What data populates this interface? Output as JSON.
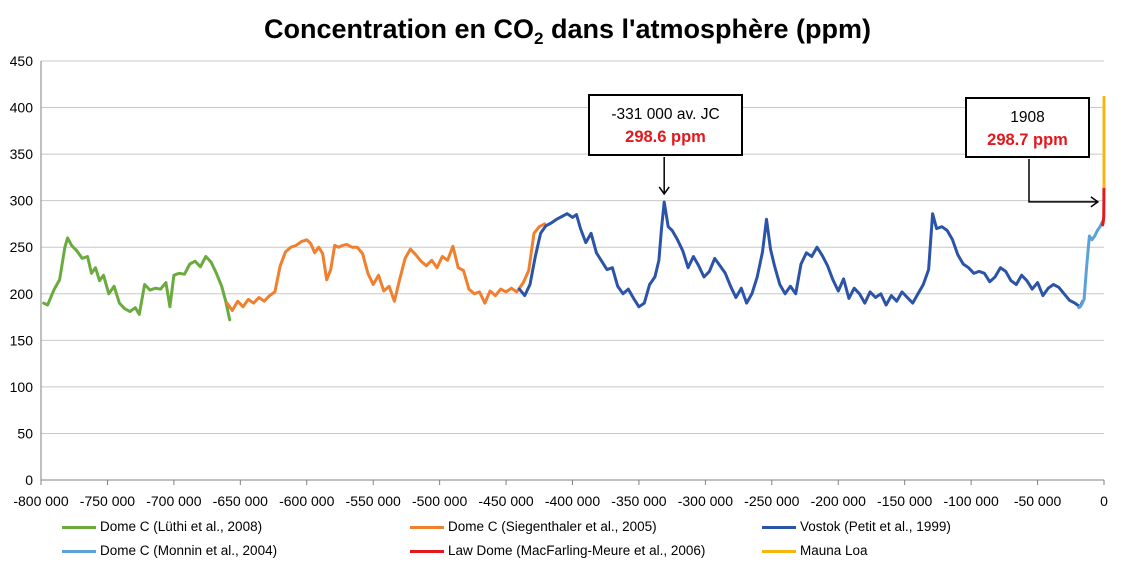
{
  "title": {
    "main": "Concentration en CO",
    "sub": "2",
    "rest": " dans l'atmosphère (ppm)"
  },
  "chart_data": {
    "type": "line",
    "title": "Concentration en CO2 dans l'atmosphère (ppm)",
    "xlim": [
      -800000,
      0
    ],
    "ylim": [
      0,
      450
    ],
    "x_ticks": [
      -800000,
      -750000,
      -700000,
      -650000,
      -600000,
      -550000,
      -500000,
      -450000,
      -400000,
      -350000,
      -300000,
      -250000,
      -200000,
      -150000,
      -100000,
      -50000,
      0
    ],
    "x_tick_labels": [
      "-800 000",
      "-750 000",
      "-700 000",
      "-650 000",
      "-600 000",
      "-550 000",
      "-500 000",
      "-450 000",
      "-400 000",
      "-350 000",
      "-300 000",
      "-250 000",
      "-200 000",
      "-150 000",
      "-100 000",
      "-50 000",
      "0"
    ],
    "y_ticks": [
      0,
      50,
      100,
      150,
      200,
      250,
      300,
      350,
      400,
      450
    ],
    "grid": "horizontal",
    "legend_position": "bottom",
    "series": [
      {
        "name": "Dome C (Lüthi et al., 2008)",
        "color": "#6aab3f",
        "points": [
          [
            -798000,
            190
          ],
          [
            -795000,
            188
          ],
          [
            -790000,
            205
          ],
          [
            -786000,
            215
          ],
          [
            -782000,
            250
          ],
          [
            -780000,
            260
          ],
          [
            -777000,
            252
          ],
          [
            -773000,
            246
          ],
          [
            -769000,
            238
          ],
          [
            -765000,
            240
          ],
          [
            -762000,
            222
          ],
          [
            -759000,
            228
          ],
          [
            -756000,
            214
          ],
          [
            -753000,
            220
          ],
          [
            -749000,
            200
          ],
          [
            -745000,
            208
          ],
          [
            -741000,
            190
          ],
          [
            -737000,
            184
          ],
          [
            -733000,
            181
          ],
          [
            -729000,
            185
          ],
          [
            -726000,
            178
          ],
          [
            -722000,
            210
          ],
          [
            -718000,
            204
          ],
          [
            -714000,
            206
          ],
          [
            -710000,
            205
          ],
          [
            -706000,
            212
          ],
          [
            -703000,
            186
          ],
          [
            -700000,
            220
          ],
          [
            -696000,
            222
          ],
          [
            -692000,
            221
          ],
          [
            -688000,
            232
          ],
          [
            -684000,
            235
          ],
          [
            -680000,
            229
          ],
          [
            -676000,
            240
          ],
          [
            -672000,
            234
          ],
          [
            -668000,
            222
          ],
          [
            -664000,
            208
          ],
          [
            -661000,
            192
          ],
          [
            -658000,
            172
          ]
        ]
      },
      {
        "name": "Dome C (Siegenthaler et al., 2005)",
        "color": "#f07f2e",
        "points": [
          [
            -660000,
            190
          ],
          [
            -656000,
            182
          ],
          [
            -652000,
            192
          ],
          [
            -648000,
            186
          ],
          [
            -644000,
            194
          ],
          [
            -640000,
            190
          ],
          [
            -636000,
            196
          ],
          [
            -632000,
            192
          ],
          [
            -628000,
            198
          ],
          [
            -624000,
            202
          ],
          [
            -620000,
            230
          ],
          [
            -616000,
            245
          ],
          [
            -612000,
            250
          ],
          [
            -608000,
            252
          ],
          [
            -604000,
            256
          ],
          [
            -600000,
            258
          ],
          [
            -597000,
            254
          ],
          [
            -594000,
            244
          ],
          [
            -591000,
            250
          ],
          [
            -588000,
            243
          ],
          [
            -585000,
            215
          ],
          [
            -582000,
            226
          ],
          [
            -579000,
            252
          ],
          [
            -576000,
            250
          ],
          [
            -573000,
            252
          ],
          [
            -570000,
            253
          ],
          [
            -566000,
            250
          ],
          [
            -562000,
            250
          ],
          [
            -558000,
            243
          ],
          [
            -554000,
            222
          ],
          [
            -550000,
            210
          ],
          [
            -546000,
            220
          ],
          [
            -542000,
            203
          ],
          [
            -538000,
            208
          ],
          [
            -534000,
            192
          ],
          [
            -530000,
            216
          ],
          [
            -526000,
            238
          ],
          [
            -522000,
            248
          ],
          [
            -518000,
            242
          ],
          [
            -514000,
            235
          ],
          [
            -510000,
            230
          ],
          [
            -506000,
            236
          ],
          [
            -502000,
            228
          ],
          [
            -498000,
            240
          ],
          [
            -494000,
            236
          ],
          [
            -490000,
            251
          ],
          [
            -486000,
            228
          ],
          [
            -482000,
            225
          ],
          [
            -478000,
            205
          ],
          [
            -474000,
            200
          ],
          [
            -470000,
            202
          ],
          [
            -466000,
            190
          ],
          [
            -462000,
            203
          ],
          [
            -458000,
            198
          ],
          [
            -454000,
            205
          ],
          [
            -450000,
            202
          ],
          [
            -446000,
            206
          ],
          [
            -442000,
            202
          ],
          [
            -437000,
            212
          ],
          [
            -433000,
            225
          ],
          [
            -429000,
            265
          ],
          [
            -425000,
            272
          ],
          [
            -421000,
            275
          ]
        ]
      },
      {
        "name": "Vostok (Petit et al., 1999)",
        "color": "#2b54a8",
        "points": [
          [
            -440000,
            205
          ],
          [
            -436000,
            198
          ],
          [
            -432000,
            210
          ],
          [
            -428000,
            240
          ],
          [
            -424000,
            265
          ],
          [
            -420000,
            273
          ],
          [
            -416000,
            276
          ],
          [
            -412000,
            280
          ],
          [
            -408000,
            283
          ],
          [
            -404000,
            286
          ],
          [
            -400000,
            282
          ],
          [
            -397000,
            285
          ],
          [
            -394000,
            270
          ],
          [
            -390000,
            255
          ],
          [
            -386000,
            265
          ],
          [
            -382000,
            244
          ],
          [
            -378000,
            235
          ],
          [
            -374000,
            226
          ],
          [
            -370000,
            228
          ],
          [
            -366000,
            208
          ],
          [
            -362000,
            200
          ],
          [
            -358000,
            205
          ],
          [
            -354000,
            195
          ],
          [
            -350000,
            186
          ],
          [
            -346000,
            190
          ],
          [
            -342000,
            210
          ],
          [
            -338000,
            218
          ],
          [
            -335000,
            236
          ],
          [
            -333000,
            270
          ],
          [
            -331000,
            298.6
          ],
          [
            -328000,
            272
          ],
          [
            -325000,
            268
          ],
          [
            -321000,
            258
          ],
          [
            -317000,
            246
          ],
          [
            -313000,
            228
          ],
          [
            -309000,
            240
          ],
          [
            -305000,
            230
          ],
          [
            -301000,
            218
          ],
          [
            -297000,
            224
          ],
          [
            -293000,
            238
          ],
          [
            -289000,
            230
          ],
          [
            -285000,
            222
          ],
          [
            -281000,
            208
          ],
          [
            -277000,
            196
          ],
          [
            -273000,
            206
          ],
          [
            -269000,
            190
          ],
          [
            -265000,
            200
          ],
          [
            -261000,
            218
          ],
          [
            -257000,
            245
          ],
          [
            -254000,
            280
          ],
          [
            -251000,
            248
          ],
          [
            -248000,
            230
          ],
          [
            -244000,
            210
          ],
          [
            -240000,
            200
          ],
          [
            -236000,
            208
          ],
          [
            -232000,
            200
          ],
          [
            -228000,
            232
          ],
          [
            -224000,
            244
          ],
          [
            -220000,
            240
          ],
          [
            -216000,
            250
          ],
          [
            -212000,
            241
          ],
          [
            -208000,
            230
          ],
          [
            -204000,
            215
          ],
          [
            -200000,
            203
          ],
          [
            -196000,
            216
          ],
          [
            -192000,
            195
          ],
          [
            -188000,
            206
          ],
          [
            -184000,
            200
          ],
          [
            -180000,
            190
          ],
          [
            -176000,
            202
          ],
          [
            -172000,
            196
          ],
          [
            -168000,
            200
          ],
          [
            -164000,
            188
          ],
          [
            -160000,
            198
          ],
          [
            -156000,
            192
          ],
          [
            -152000,
            202
          ],
          [
            -148000,
            196
          ],
          [
            -144000,
            190
          ],
          [
            -140000,
            200
          ],
          [
            -136000,
            210
          ],
          [
            -132000,
            226
          ],
          [
            -129000,
            286
          ],
          [
            -126000,
            270
          ],
          [
            -122000,
            272
          ],
          [
            -118000,
            268
          ],
          [
            -114000,
            258
          ],
          [
            -110000,
            242
          ],
          [
            -106000,
            232
          ],
          [
            -102000,
            228
          ],
          [
            -98000,
            222
          ],
          [
            -94000,
            224
          ],
          [
            -90000,
            222
          ],
          [
            -86000,
            213
          ],
          [
            -82000,
            218
          ],
          [
            -78000,
            228
          ],
          [
            -74000,
            224
          ],
          [
            -70000,
            214
          ],
          [
            -66000,
            210
          ],
          [
            -62000,
            220
          ],
          [
            -58000,
            214
          ],
          [
            -54000,
            205
          ],
          [
            -50000,
            212
          ],
          [
            -46000,
            198
          ],
          [
            -42000,
            206
          ],
          [
            -38000,
            210
          ],
          [
            -34000,
            207
          ],
          [
            -30000,
            200
          ],
          [
            -26000,
            193
          ],
          [
            -22000,
            190
          ],
          [
            -18000,
            186
          ],
          [
            -16000,
            192
          ]
        ]
      },
      {
        "name": "Dome C (Monnin et al., 2004)",
        "color": "#5aa2d8",
        "points": [
          [
            -19000,
            185
          ],
          [
            -17000,
            188
          ],
          [
            -15000,
            194
          ],
          [
            -13000,
            230
          ],
          [
            -11000,
            262
          ],
          [
            -9000,
            258
          ],
          [
            -7000,
            262
          ],
          [
            -5000,
            268
          ],
          [
            -3000,
            272
          ],
          [
            -1000,
            278
          ]
        ]
      },
      {
        "name": "Law Dome (MacFarling-Meure et al., 2006)",
        "color": "#e3181d",
        "points": [
          [
            -1000,
            274
          ],
          [
            -500,
            278
          ],
          [
            -200,
            282
          ],
          [
            -92,
            298.7
          ],
          [
            -40,
            310
          ],
          [
            -5,
            315
          ]
        ]
      },
      {
        "name": "Mauna Loa",
        "color": "#f5b70f",
        "points": [
          [
            0,
            315
          ],
          [
            0,
            340
          ],
          [
            0,
            370
          ],
          [
            0,
            390
          ],
          [
            0,
            411
          ]
        ]
      }
    ]
  },
  "callouts": [
    {
      "label": "-331 000 av. JC",
      "value": "298.6 ppm"
    },
    {
      "label": "1908",
      "value": "298.7 ppm"
    }
  ]
}
